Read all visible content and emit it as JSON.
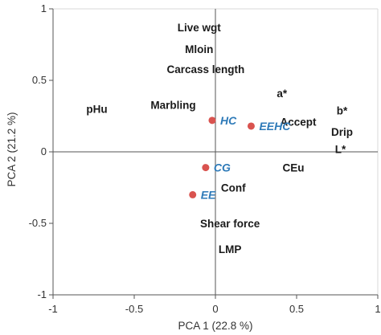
{
  "chart_data": {
    "type": "scatter",
    "title": "",
    "xlabel": "PCA 1 (22.8 %)",
    "ylabel": "PCA 2 (21.2 %)",
    "xlim": [
      -1,
      1
    ],
    "ylim": [
      -1,
      1
    ],
    "x_ticks": [
      -1,
      -0.5,
      0,
      0.5,
      1
    ],
    "y_ticks": [
      -1,
      -0.5,
      0,
      0.5,
      1
    ],
    "x_tick_labels": [
      "-1",
      "-0.5",
      "0",
      "0.5",
      "1"
    ],
    "y_tick_labels": [
      "-1",
      "-0.5",
      "0",
      "0.5",
      "1"
    ],
    "grid": false,
    "zero_lines": true,
    "colors": {
      "points": "#d9534f",
      "group_labels": "#2e7ab8",
      "variable_labels": "#1a1a1a",
      "axes": "#555555"
    },
    "groups": [
      {
        "label": "HC",
        "x": -0.02,
        "y": 0.22
      },
      {
        "label": "EEHC",
        "x": 0.22,
        "y": 0.18
      },
      {
        "label": "CG",
        "x": -0.06,
        "y": -0.11
      },
      {
        "label": "EE",
        "x": -0.14,
        "y": -0.3
      }
    ],
    "variables": [
      {
        "label": "Live wgt",
        "x": -0.1,
        "y": 0.87
      },
      {
        "label": "Mloin",
        "x": -0.1,
        "y": 0.72
      },
      {
        "label": "Carcass length",
        "x": -0.06,
        "y": 0.58
      },
      {
        "label": "a*",
        "x": 0.41,
        "y": 0.41
      },
      {
        "label": "pHu",
        "x": -0.73,
        "y": 0.3
      },
      {
        "label": "Marbling",
        "x": -0.26,
        "y": 0.33
      },
      {
        "label": "b*",
        "x": 0.78,
        "y": 0.29
      },
      {
        "label": "Accept",
        "x": 0.51,
        "y": 0.21
      },
      {
        "label": "Drip",
        "x": 0.78,
        "y": 0.14
      },
      {
        "label": "L*",
        "x": 0.77,
        "y": 0.02
      },
      {
        "label": "CEu",
        "x": 0.48,
        "y": -0.11
      },
      {
        "label": "Conf",
        "x": 0.11,
        "y": -0.25
      },
      {
        "label": "Shear force",
        "x": 0.09,
        "y": -0.5
      },
      {
        "label": "LMP",
        "x": 0.09,
        "y": -0.68
      }
    ]
  }
}
